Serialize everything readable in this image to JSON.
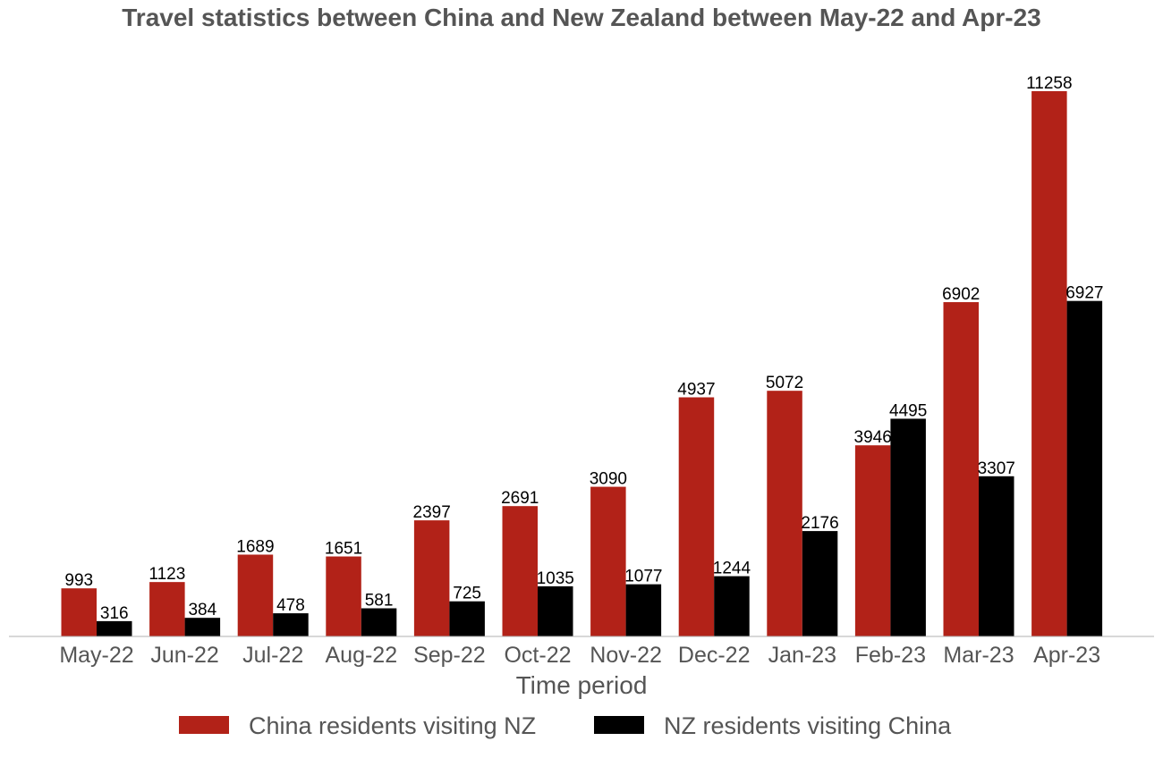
{
  "chart_data": {
    "type": "bar",
    "title": "Travel statistics between China and New Zealand between May-22 and Apr-23",
    "xlabel": "Time period",
    "ylabel": "",
    "categories": [
      "May-22",
      "Jun-22",
      "Jul-22",
      "Aug-22",
      "Sep-22",
      "Oct-22",
      "Nov-22",
      "Dec-22",
      "Jan-23",
      "Feb-23",
      "Mar-23",
      "Apr-23"
    ],
    "series": [
      {
        "name": "China residents visiting NZ",
        "color": "#b22218",
        "values": [
          993,
          1123,
          1689,
          1651,
          2397,
          2691,
          3090,
          4937,
          5072,
          3946,
          6902,
          11258
        ]
      },
      {
        "name": "NZ residents visiting China",
        "color": "#000000",
        "values": [
          316,
          384,
          478,
          581,
          725,
          1035,
          1077,
          1244,
          2176,
          4495,
          3307,
          6927
        ]
      }
    ],
    "ylim": [
      0,
      11800
    ],
    "grid": false,
    "legend_position": "bottom-center",
    "data_labels": true
  }
}
